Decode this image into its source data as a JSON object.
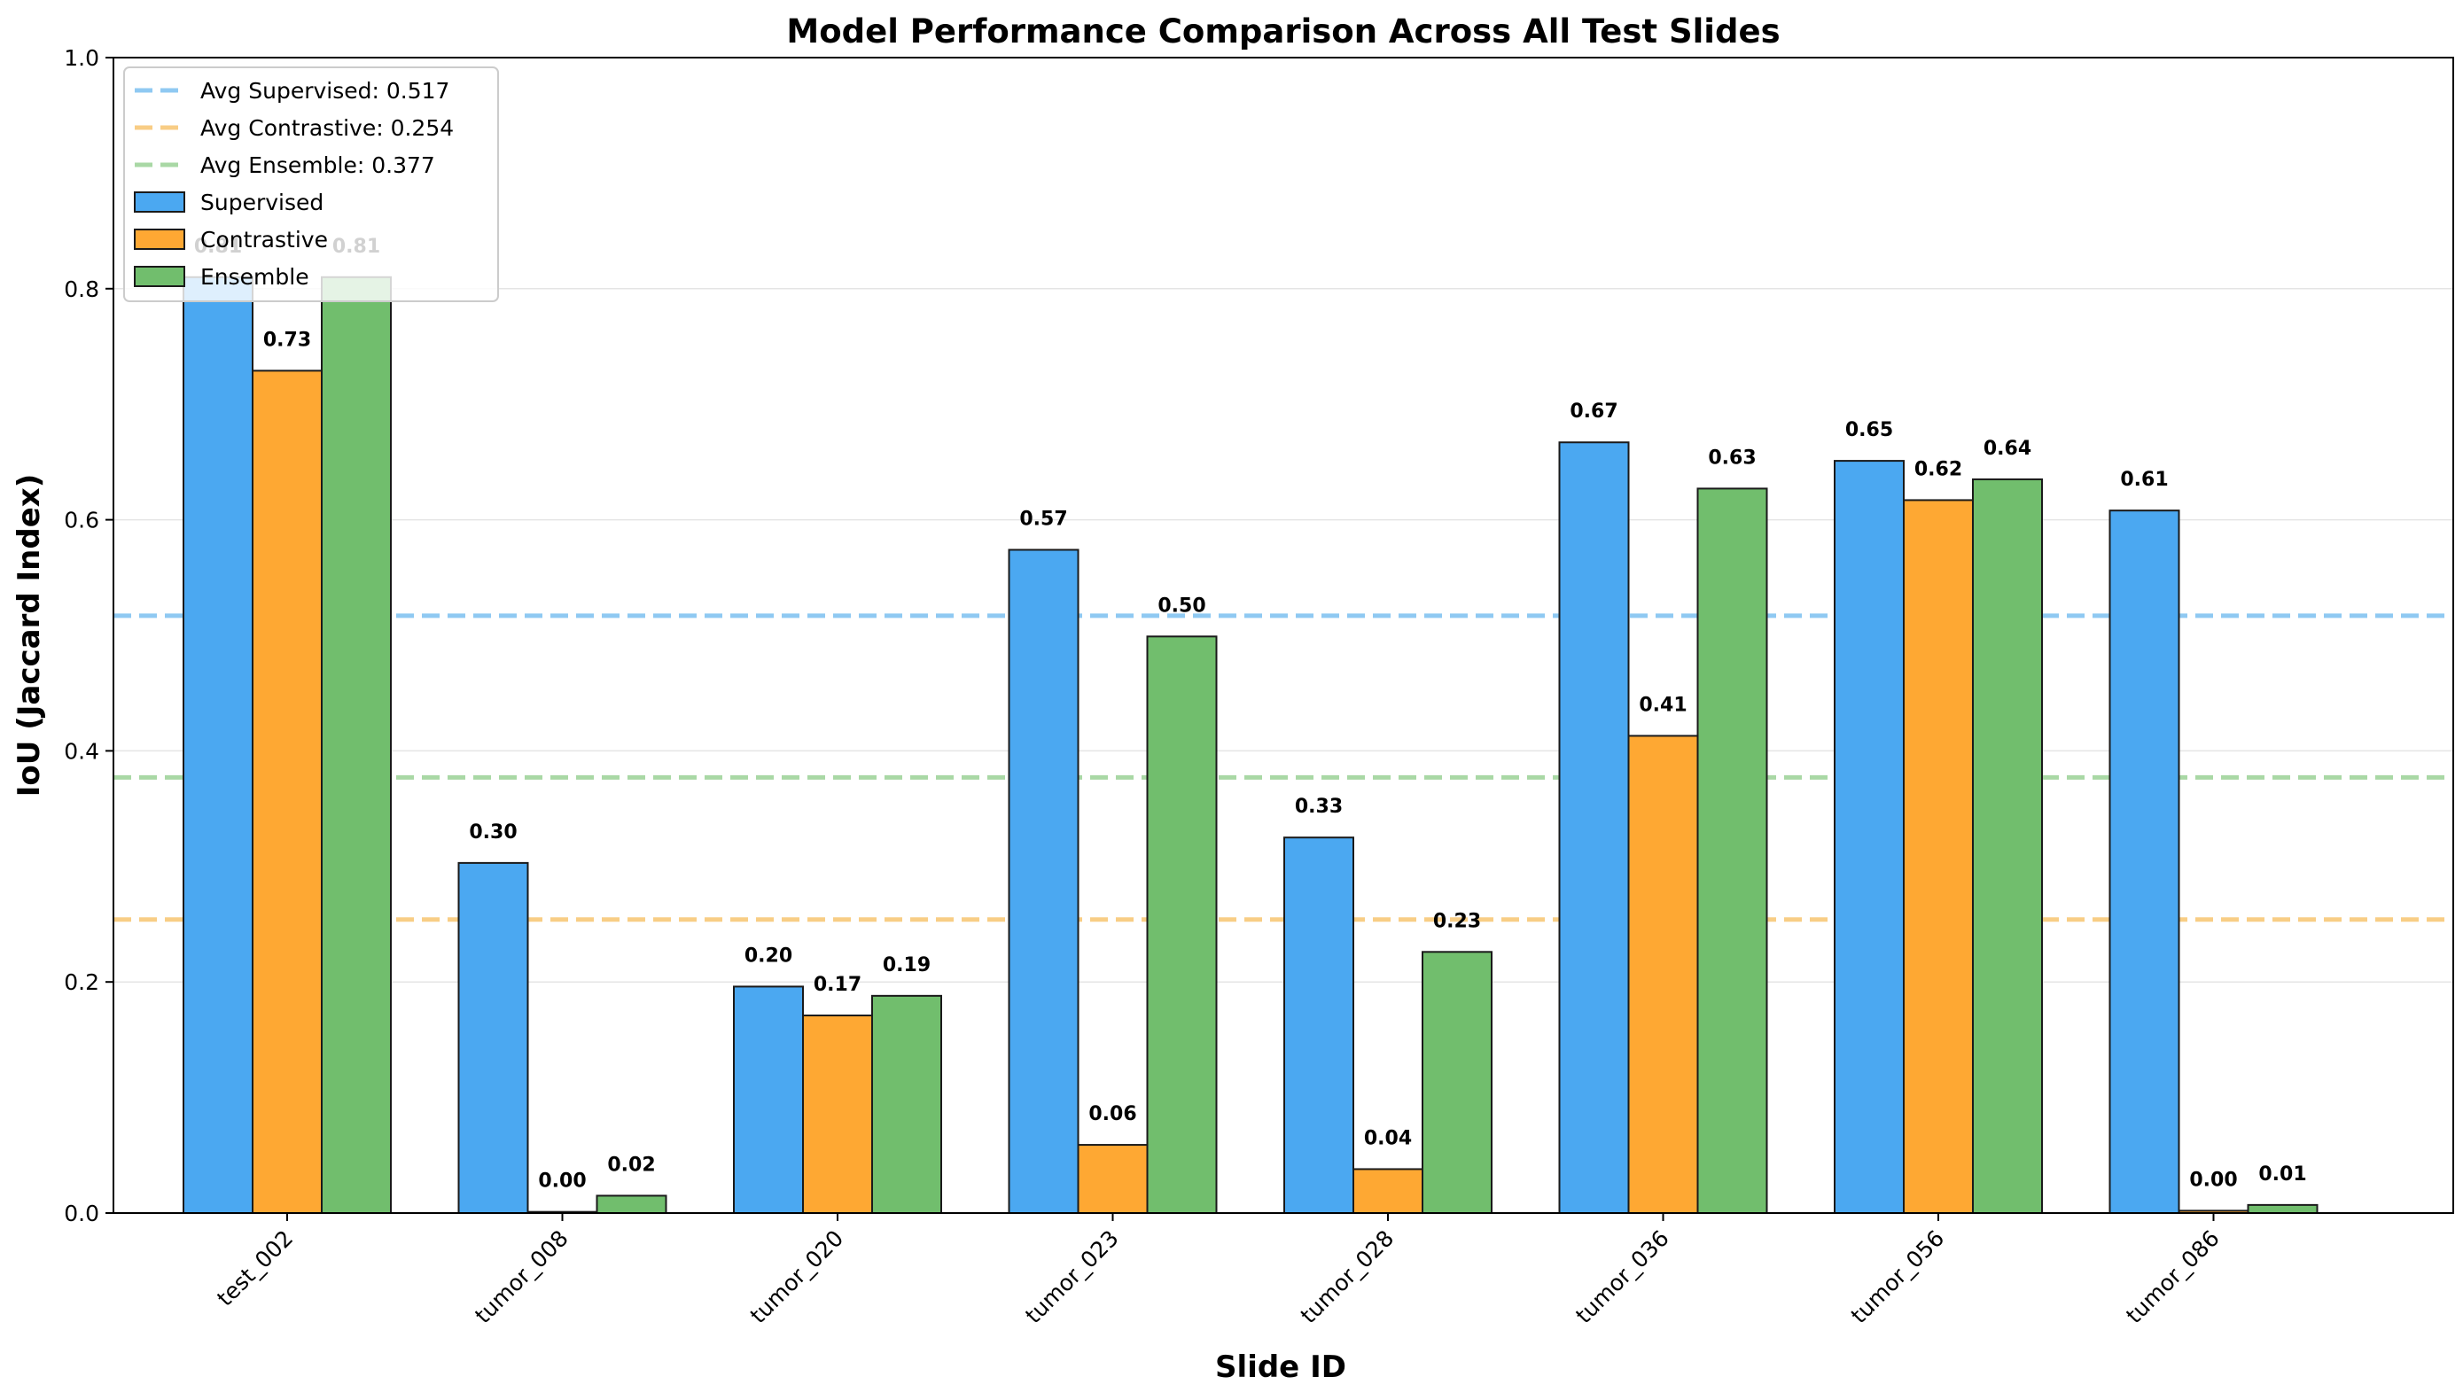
{
  "chart_data": {
    "type": "bar",
    "title": "Model Performance Comparison Across All Test Slides",
    "xlabel": "Slide ID",
    "ylabel": "IoU (Jaccard Index)",
    "ylim": [
      0,
      1
    ],
    "yticks": [
      "0.0",
      "0.2",
      "0.4",
      "0.6",
      "0.8",
      "1.0"
    ],
    "grid": "y",
    "legend_position": "top-left",
    "categories": [
      "test_002",
      "tumor_008",
      "tumor_020",
      "tumor_023",
      "tumor_028",
      "tumor_036",
      "tumor_056",
      "tumor_086"
    ],
    "series": [
      {
        "name": "Supervised",
        "color": "#4ba8f1",
        "values": [
          0.81,
          0.303,
          0.196,
          0.574,
          0.325,
          0.667,
          0.651,
          0.608
        ],
        "labels": [
          "0.81",
          "0.30",
          "0.20",
          "0.57",
          "0.33",
          "0.67",
          "0.65",
          "0.61"
        ]
      },
      {
        "name": "Contrastive",
        "color": "#fea833",
        "values": [
          0.729,
          0.001,
          0.171,
          0.059,
          0.038,
          0.413,
          0.617,
          0.002
        ],
        "labels": [
          "0.73",
          "0.00",
          "0.17",
          "0.06",
          "0.04",
          "0.41",
          "0.62",
          "0.00"
        ]
      },
      {
        "name": "Ensemble",
        "color": "#71be6d",
        "values": [
          0.81,
          0.015,
          0.188,
          0.499,
          0.226,
          0.627,
          0.635,
          0.007
        ],
        "labels": [
          "0.81",
          "0.02",
          "0.19",
          "0.50",
          "0.23",
          "0.63",
          "0.64",
          "0.01"
        ]
      }
    ],
    "reference_lines": [
      {
        "label": "Avg Supervised: 0.517",
        "value": 0.517,
        "color": "#8fc9f2"
      },
      {
        "label": "Avg Contrastive: 0.254",
        "value": 0.254,
        "color": "#f8cd85"
      },
      {
        "label": "Avg Ensemble: 0.377",
        "value": 0.377,
        "color": "#a9d8a5"
      }
    ]
  }
}
